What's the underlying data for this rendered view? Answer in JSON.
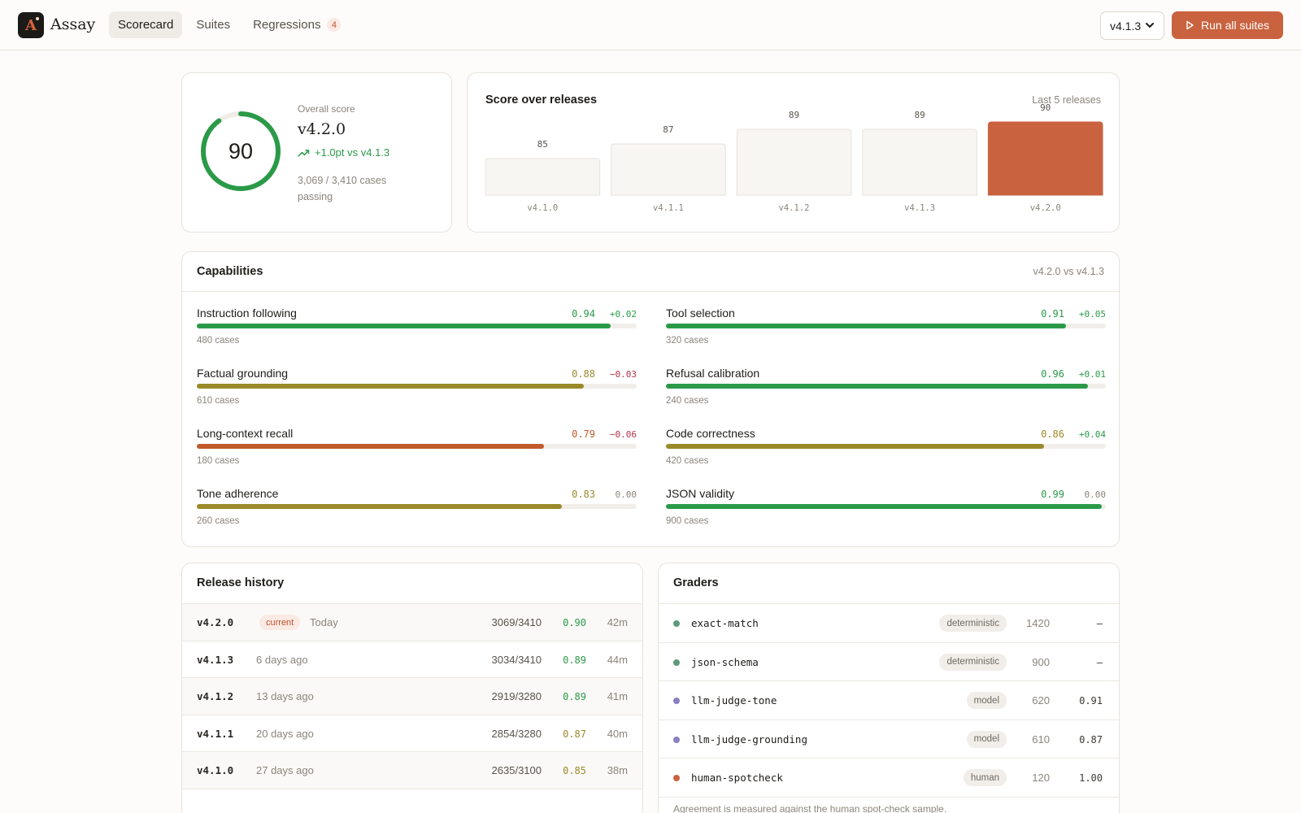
{
  "header": {
    "brand": "Assay",
    "logo_letter": "A",
    "nav": [
      {
        "label": "Scorecard",
        "active": true
      },
      {
        "label": "Suites"
      },
      {
        "label": "Regressions",
        "badge": "4"
      }
    ],
    "version_selected": "v4.1.3",
    "run_label": "Run all suites"
  },
  "overall": {
    "label": "Overall score",
    "score": "90",
    "score_fraction": 0.9,
    "version": "v4.2.0",
    "delta": "+1.0pt vs v4.1.3",
    "cases": "3,069 / 3,410 cases passing"
  },
  "score_chart": {
    "title": "Score over releases",
    "subtitle": "Last 5 releases"
  },
  "chart_data": {
    "type": "bar",
    "categories": [
      "v4.1.0",
      "v4.1.1",
      "v4.1.2",
      "v4.1.3",
      "v4.2.0"
    ],
    "values": [
      85,
      87,
      89,
      89,
      90
    ],
    "title": "Score over releases",
    "ylim": [
      80,
      100
    ],
    "highlight": "v4.2.0",
    "colors": {
      "bar": "#f8f6f3",
      "bar_border": "#e7e3dc",
      "highlight": "#c9623f"
    }
  },
  "capabilities": {
    "title": "Capabilities",
    "subtitle": "v4.2.0 vs v4.1.3",
    "items": [
      {
        "name": "Instruction following",
        "score": "0.94",
        "value": 0.94,
        "delta": "+0.02",
        "cases": "480 cases",
        "color": "#2b9a48"
      },
      {
        "name": "Tool selection",
        "score": "0.91",
        "value": 0.91,
        "delta": "+0.05",
        "cases": "320 cases",
        "color": "#2b9a48"
      },
      {
        "name": "Factual grounding",
        "score": "0.88",
        "value": 0.88,
        "delta": "−0.03",
        "cases": "610 cases",
        "color": "#9a8a2a"
      },
      {
        "name": "Refusal calibration",
        "score": "0.96",
        "value": 0.96,
        "delta": "+0.01",
        "cases": "240 cases",
        "color": "#2b9a48"
      },
      {
        "name": "Long-context recall",
        "score": "0.79",
        "value": 0.79,
        "delta": "−0.06",
        "cases": "180 cases",
        "color": "#c25a2a"
      },
      {
        "name": "Code correctness",
        "score": "0.86",
        "value": 0.86,
        "delta": "+0.04",
        "cases": "420 cases",
        "color": "#9a8a2a"
      },
      {
        "name": "Tone adherence",
        "score": "0.83",
        "value": 0.83,
        "delta": "0.00",
        "cases": "260 cases",
        "color": "#9a8a2a"
      },
      {
        "name": "JSON validity",
        "score": "0.99",
        "value": 0.99,
        "delta": "0.00",
        "cases": "900 cases",
        "color": "#2b9a48"
      }
    ]
  },
  "release_history": {
    "title": "Release history",
    "current_label": "current",
    "rows": [
      {
        "version": "v4.2.0",
        "current": true,
        "date": "Today",
        "cases": "3069/3410",
        "score": "0.90",
        "duration": "42m"
      },
      {
        "version": "v4.1.3",
        "date": "6 days ago",
        "cases": "3034/3410",
        "score": "0.89",
        "duration": "44m"
      },
      {
        "version": "v4.1.2",
        "date": "13 days ago",
        "cases": "2919/3280",
        "score": "0.89",
        "duration": "41m"
      },
      {
        "version": "v4.1.1",
        "date": "20 days ago",
        "cases": "2854/3280",
        "score": "0.87",
        "duration": "40m"
      },
      {
        "version": "v4.1.0",
        "date": "27 days ago",
        "cases": "2635/3100",
        "score": "0.85",
        "duration": "38m"
      }
    ]
  },
  "graders": {
    "title": "Graders",
    "rows": [
      {
        "name": "exact-match",
        "type": "deterministic",
        "count": "1420",
        "agreement": "—",
        "dot": "#5c9a7a"
      },
      {
        "name": "json-schema",
        "type": "deterministic",
        "count": "900",
        "agreement": "—",
        "dot": "#5c9a7a"
      },
      {
        "name": "llm-judge-tone",
        "type": "model",
        "count": "620",
        "agreement": "0.91",
        "dot": "#8a7fc0"
      },
      {
        "name": "llm-judge-grounding",
        "type": "model",
        "count": "610",
        "agreement": "0.87",
        "dot": "#8a7fc0"
      },
      {
        "name": "human-spotcheck",
        "type": "human",
        "count": "120",
        "agreement": "1.00",
        "dot": "#c9623f"
      }
    ],
    "note": "Agreement is measured against the human spot-check sample."
  }
}
